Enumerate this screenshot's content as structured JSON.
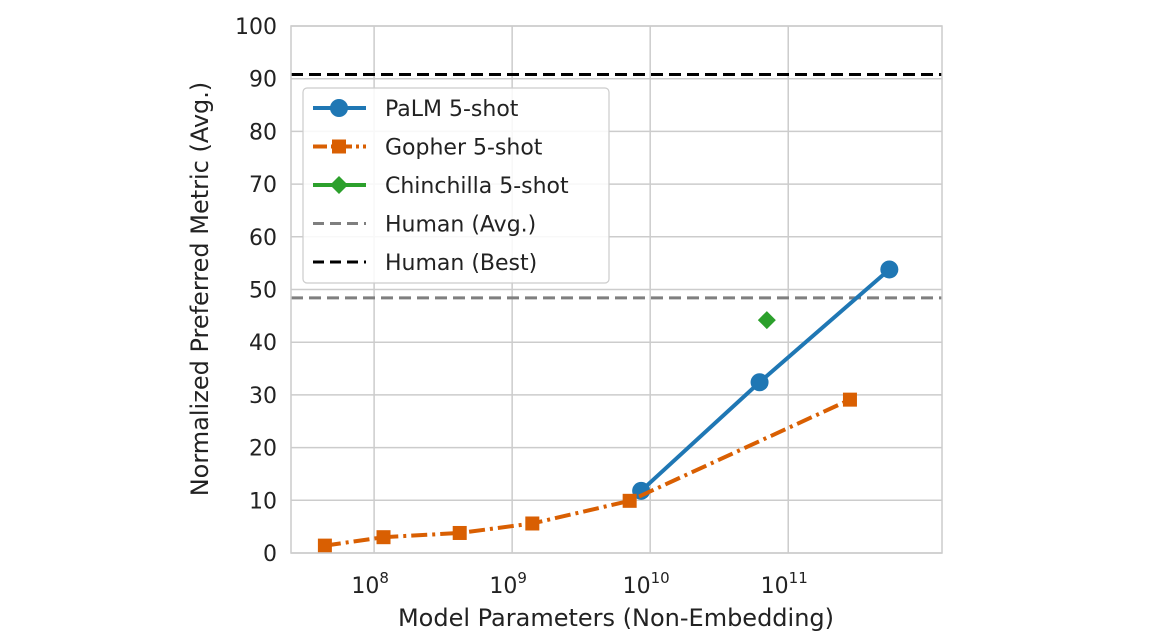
{
  "chart_data": {
    "type": "line",
    "title": "",
    "xlabel": "Model Parameters (Non-Embedding)",
    "ylabel": "Normalized Preferred Metric (Avg.)",
    "xscale": "log",
    "xlim": [
      25000000,
      1300000000000
    ],
    "ylim": [
      0,
      100
    ],
    "grid": true,
    "legend_position": "upper-left",
    "x_ticks": [
      {
        "base": "10",
        "exp": "8",
        "value": 100000000
      },
      {
        "base": "10",
        "exp": "9",
        "value": 1000000000
      },
      {
        "base": "10",
        "exp": "10",
        "value": 10000000000
      },
      {
        "base": "10",
        "exp": "11",
        "value": 100000000000
      }
    ],
    "y_ticks": [
      "0",
      "10",
      "20",
      "30",
      "40",
      "50",
      "60",
      "70",
      "80",
      "90",
      "100"
    ],
    "series": [
      {
        "name": "PaLM 5-shot",
        "color": "#1f77b4",
        "marker": "circle",
        "line_style": "solid",
        "x": [
          8600000000,
          62000000000,
          540000000000
        ],
        "y": [
          11.8,
          32.4,
          53.8
        ]
      },
      {
        "name": "Gopher 5-shot",
        "color": "#d95f02",
        "marker": "square",
        "line_style": "dashdot",
        "x": [
          44000000,
          117000000,
          417000000,
          1400000000,
          7100000000,
          280000000000
        ],
        "y": [
          1.4,
          3.0,
          3.8,
          5.6,
          9.9,
          29.1
        ]
      },
      {
        "name": "Chinchilla 5-shot",
        "color": "#2ca02c",
        "marker": "diamond",
        "line_style": "solid",
        "x": [
          70000000000
        ],
        "y": [
          44.2
        ]
      }
    ],
    "reference_lines": [
      {
        "name": "Human (Avg.)",
        "y": 48.4,
        "color": "#7f7f7f",
        "line_style": "dashed"
      },
      {
        "name": "Human (Best)",
        "y": 90.8,
        "color": "#000000",
        "line_style": "dashed"
      }
    ]
  }
}
